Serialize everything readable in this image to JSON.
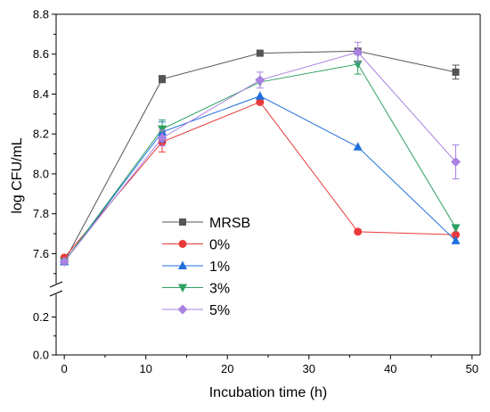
{
  "chart_data": {
    "type": "line",
    "xlabel": "Incubation time (h)",
    "ylabel": "log CFU/mL",
    "xlim": [
      -1,
      51
    ],
    "ylim_upper": [
      7.45,
      8.8
    ],
    "ylim_lower": [
      0.0,
      0.32
    ],
    "axis_break": true,
    "x_ticks": [
      0,
      10,
      20,
      30,
      40,
      50
    ],
    "y_ticks_upper": [
      7.6,
      7.8,
      8.0,
      8.2,
      8.4,
      8.6,
      8.8
    ],
    "y_ticks_lower": [
      0.0,
      0.2
    ],
    "legend_position": "lower-left",
    "x": [
      0,
      12,
      24,
      36,
      48
    ],
    "series": [
      {
        "name": "MRSB",
        "marker": "square",
        "color": "#555555",
        "values": [
          7.56,
          8.475,
          8.605,
          8.615,
          8.51
        ],
        "errors": [
          0,
          0.018,
          0,
          0,
          0.035
        ]
      },
      {
        "name": "0%",
        "marker": "circle",
        "color": "#e8393a",
        "values": [
          7.58,
          8.16,
          8.36,
          7.71,
          7.695
        ],
        "errors": [
          0,
          0.05,
          0,
          0,
          0
        ]
      },
      {
        "name": "1%",
        "marker": "triangle-up",
        "color": "#1f6fdc",
        "values": [
          7.56,
          8.21,
          8.39,
          8.135,
          7.665
        ],
        "errors": [
          0,
          0.05,
          0,
          0,
          0
        ]
      },
      {
        "name": "3%",
        "marker": "triangle-down",
        "color": "#2ea060",
        "values": [
          7.56,
          8.225,
          8.46,
          8.55,
          7.73
        ],
        "errors": [
          0,
          0.045,
          0,
          0.05,
          0
        ]
      },
      {
        "name": "5%",
        "marker": "diamond",
        "color": "#a982e2",
        "values": [
          7.56,
          8.18,
          8.47,
          8.61,
          8.06
        ],
        "errors": [
          0,
          0.04,
          0.04,
          0.05,
          0.085
        ]
      }
    ]
  }
}
